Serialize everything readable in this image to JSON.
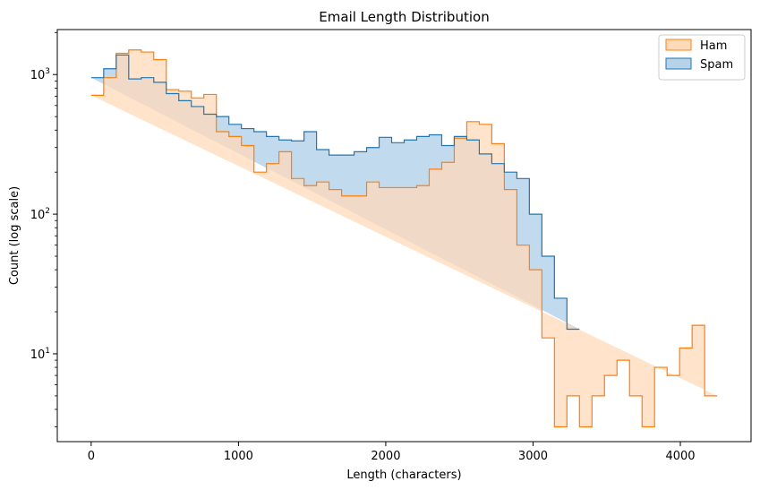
{
  "chart_data": {
    "type": "area",
    "title": "Email Length Distribution",
    "xlabel": "Length (characters)",
    "ylabel": "Count (log scale)",
    "xlim": [
      -230,
      4480
    ],
    "ylim": [
      2.35,
      2100
    ],
    "yscale": "log",
    "grid": false,
    "legend_position": "top-right",
    "x_ticks": [
      {
        "value": 0,
        "label": "0"
      },
      {
        "value": 1000,
        "label": "1000"
      },
      {
        "value": 2000,
        "label": "2000"
      },
      {
        "value": 3000,
        "label": "3000"
      },
      {
        "value": 4000,
        "label": "4000"
      }
    ],
    "y_ticks": [
      {
        "value": 10,
        "base": "10",
        "exp": "1"
      },
      {
        "value": 100,
        "base": "10",
        "exp": "2"
      },
      {
        "value": 1000,
        "base": "10",
        "exp": "3"
      }
    ],
    "bin_width": 85,
    "series": [
      {
        "name": "Ham",
        "edge_color": "#ff7f0e",
        "fill_color": "#ffdab9",
        "start": 0,
        "counts": [
          710,
          950,
          1420,
          1500,
          1450,
          1280,
          780,
          760,
          680,
          720,
          390,
          360,
          310,
          200,
          230,
          280,
          180,
          160,
          170,
          150,
          135,
          135,
          170,
          155,
          155,
          155,
          160,
          210,
          235,
          350,
          460,
          440,
          320,
          150,
          60,
          40,
          13,
          3,
          5,
          3,
          5,
          7,
          9,
          5,
          3,
          8,
          7,
          11,
          16,
          5
        ]
      },
      {
        "name": "Spam",
        "edge_color": "#1f77b4",
        "fill_color": "#b7d3ea",
        "start": 0,
        "counts": [
          950,
          1100,
          1380,
          930,
          950,
          880,
          730,
          650,
          590,
          520,
          500,
          440,
          410,
          390,
          360,
          340,
          335,
          390,
          290,
          265,
          265,
          280,
          300,
          355,
          325,
          340,
          360,
          370,
          310,
          360,
          340,
          270,
          230,
          200,
          180,
          100,
          50,
          25,
          15
        ]
      }
    ]
  }
}
